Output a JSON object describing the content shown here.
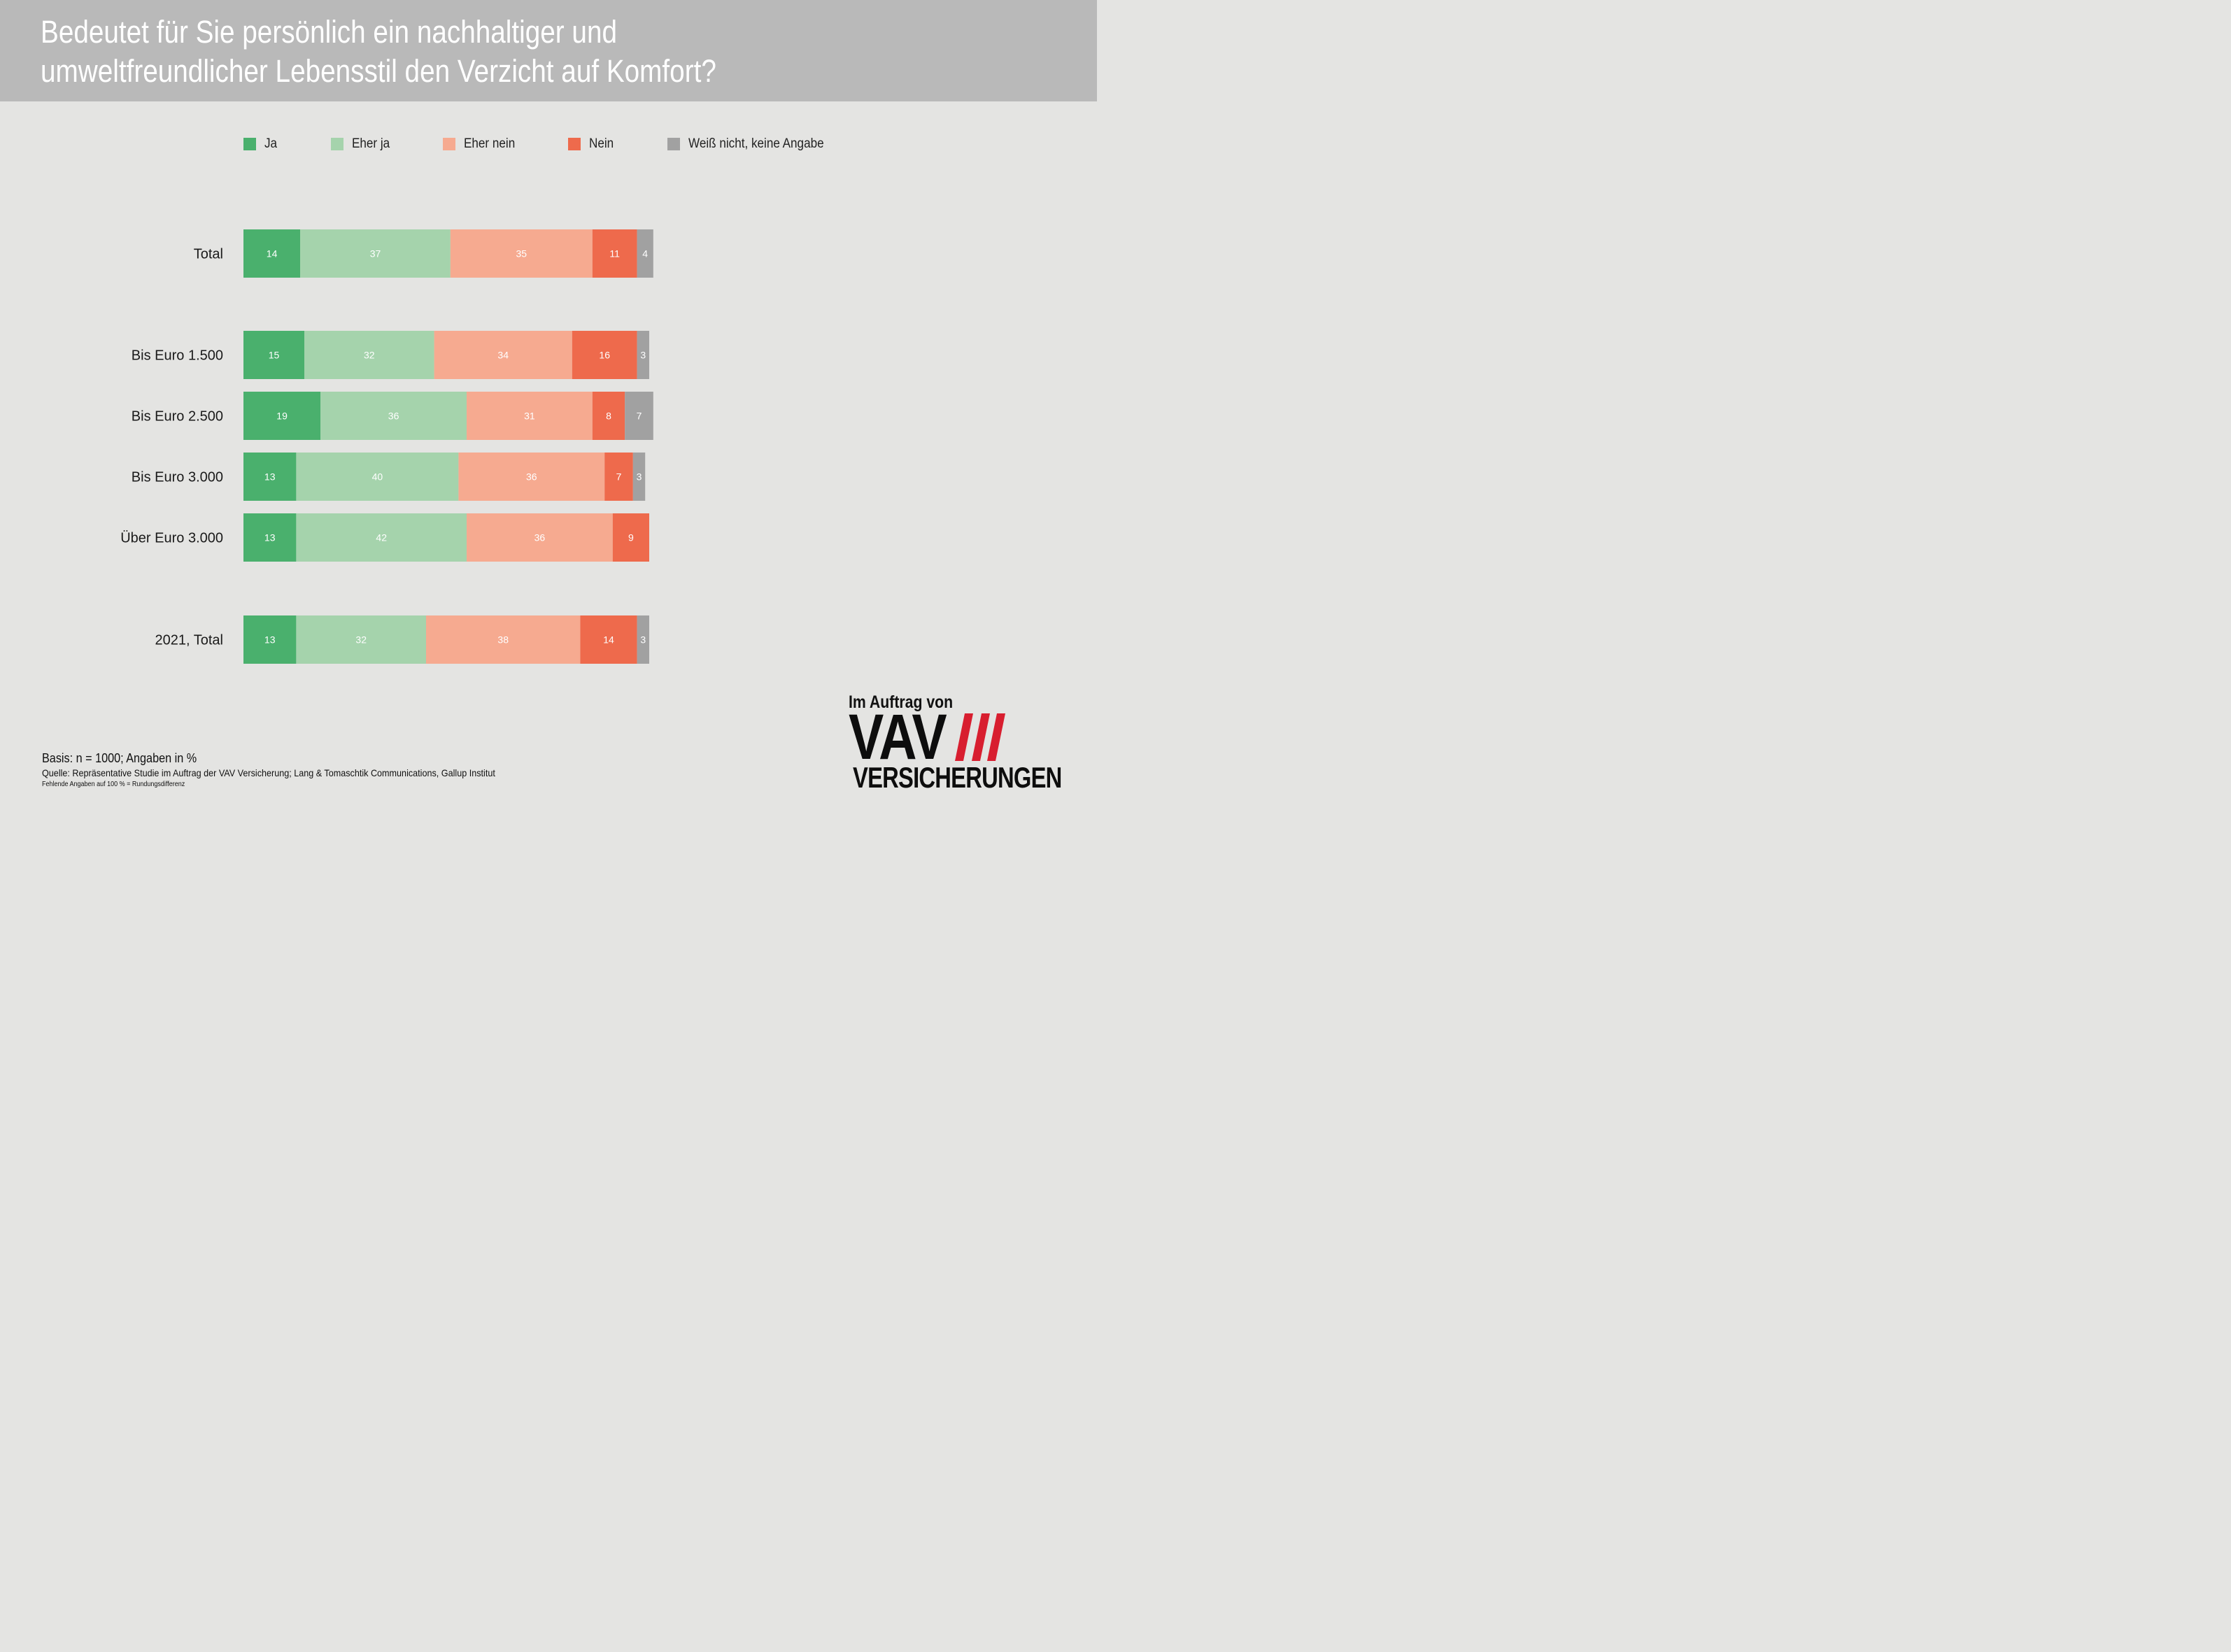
{
  "title_lines": [
    "Bedeutet für Sie persönlich ein nachhaltiger und",
    "umweltfreundlicher Lebensstil den Verzicht auf Komfort?"
  ],
  "legend": [
    {
      "label": "Ja",
      "color": "#4ab06d"
    },
    {
      "label": "Eher ja",
      "color": "#a5d3ac"
    },
    {
      "label": "Eher nein",
      "color": "#f6aa90"
    },
    {
      "label": "Nein",
      "color": "#ee6a4c"
    },
    {
      "label": "Weiß nicht, keine Angabe",
      "color": "#a1a1a1"
    }
  ],
  "chart_data": {
    "type": "bar",
    "orientation": "horizontal",
    "stacked": true,
    "unit": "%",
    "categories": [
      "Total",
      "Bis Euro 1.500",
      "Bis Euro 2.500",
      "Bis Euro 3.000",
      "Über Euro 3.000",
      "2021, Total"
    ],
    "series": [
      {
        "name": "Ja",
        "color": "#4ab06d",
        "values": [
          14,
          15,
          19,
          13,
          13,
          13
        ]
      },
      {
        "name": "Eher ja",
        "color": "#a5d3ac",
        "values": [
          37,
          32,
          36,
          40,
          42,
          32
        ]
      },
      {
        "name": "Eher nein",
        "color": "#f6aa90",
        "values": [
          35,
          34,
          31,
          36,
          36,
          38
        ]
      },
      {
        "name": "Nein",
        "color": "#ee6a4c",
        "values": [
          11,
          16,
          8,
          7,
          9,
          14
        ]
      },
      {
        "name": "Weiß nicht, keine Angabe",
        "color": "#a1a1a1",
        "values": [
          4,
          3,
          7,
          3,
          null,
          3
        ]
      }
    ],
    "xlim": [
      0,
      100
    ],
    "grid": false,
    "legend_position": "top"
  },
  "footer": {
    "basis": "Basis: n = 1000; Angaben in %",
    "source": "Quelle: Repräsentative Studie im Auftrag der VAV Versicherung; Lang & Tomaschtik Communications, Gallup Institut",
    "note": "Fehlende Angaben auf 100 % = Rundungsdifferenz"
  },
  "logo": {
    "caption": "Im Auftrag von",
    "wordmark": "VAV",
    "subline": "VERSICHERUNGEN",
    "stripe_color": "#d81e2f"
  }
}
